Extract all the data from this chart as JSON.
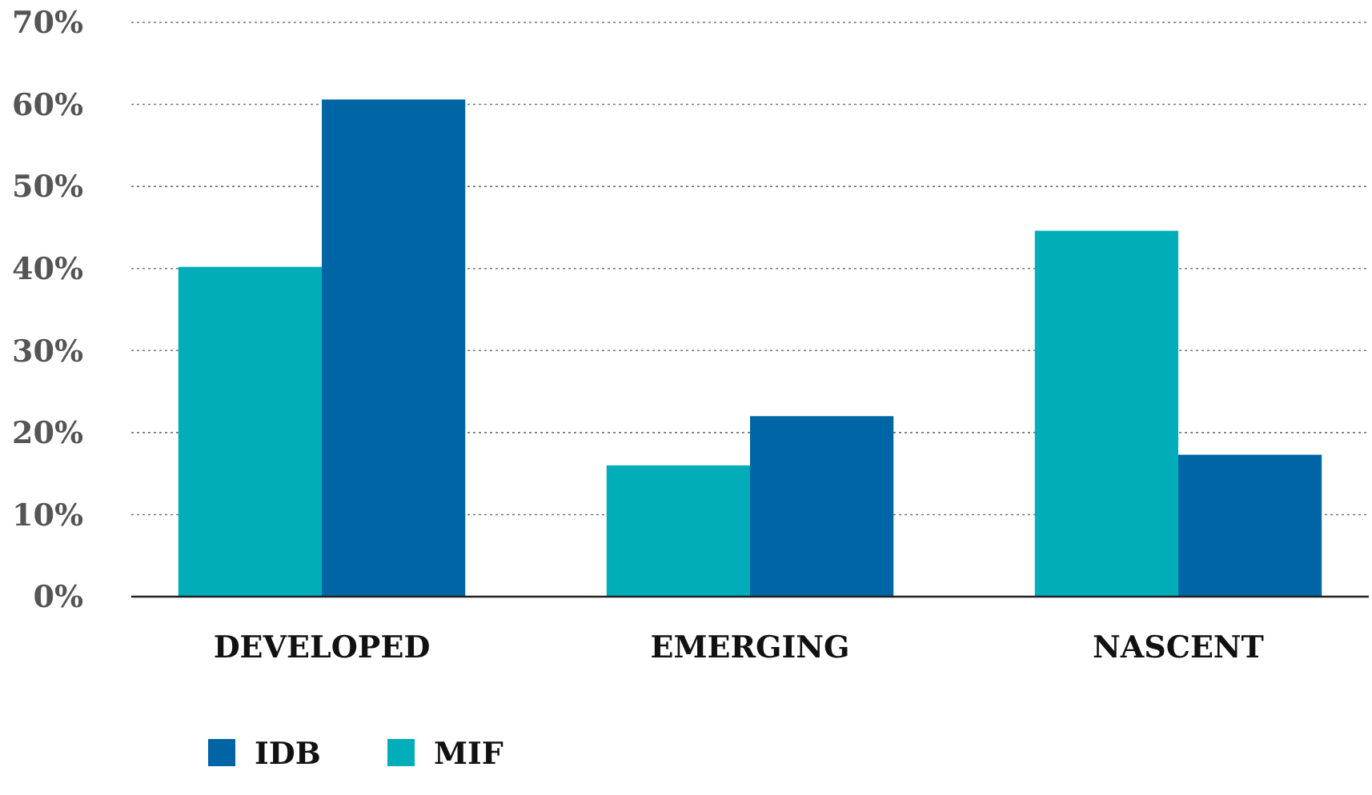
{
  "chart_data": {
    "type": "bar",
    "categories": [
      "DEVELOPED",
      "EMERGING",
      "NASCENT"
    ],
    "series": [
      {
        "name": "MIF",
        "color": "#00adb9",
        "values": [
          40.2,
          16,
          44.6
        ]
      },
      {
        "name": "IDB",
        "color": "#0065a4",
        "values": [
          60.6,
          22,
          17.3
        ]
      }
    ],
    "ylim": [
      0,
      70
    ],
    "yticks": [
      {
        "value": 0,
        "label": "0%"
      },
      {
        "value": 10,
        "label": "10%"
      },
      {
        "value": 20,
        "label": "20%"
      },
      {
        "value": 30,
        "label": "30%"
      },
      {
        "value": 40,
        "label": "40%"
      },
      {
        "value": 50,
        "label": "50%"
      },
      {
        "value": 60,
        "label": "60%"
      },
      {
        "value": 70,
        "label": "70%"
      }
    ],
    "grid": "y",
    "legend": "bottom left"
  }
}
